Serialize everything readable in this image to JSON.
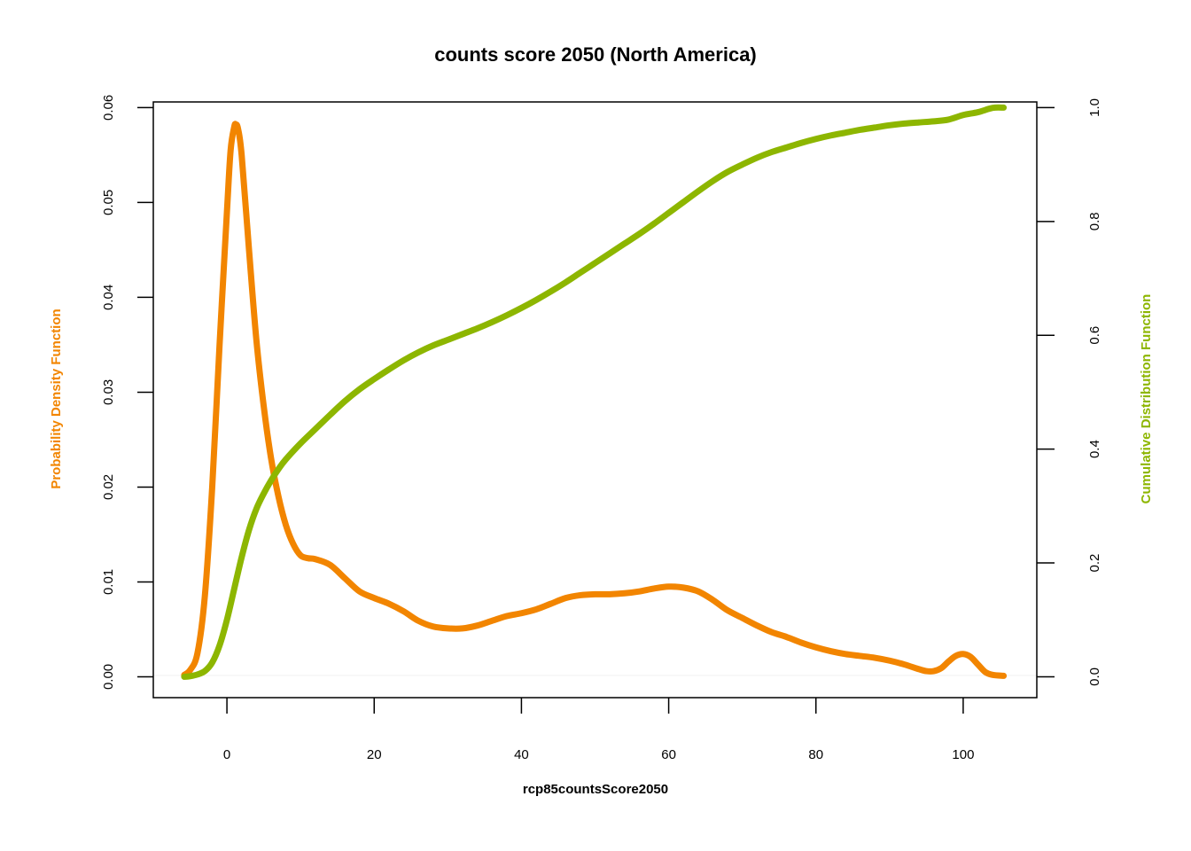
{
  "chart_data": {
    "type": "line",
    "title": "counts score 2050 (North America)",
    "xlabel": "rcp85countsScore2050",
    "ylabel_left": "Probability Density Function",
    "ylabel_right": "Cumulative Distribution Function",
    "xlim": [
      -10,
      110
    ],
    "ylim_left": [
      -0.0022,
      0.0606
    ],
    "ylim_right": [
      -0.0367,
      1.01
    ],
    "x_ticks": [
      0,
      20,
      40,
      60,
      80,
      100
    ],
    "x_tick_labels": [
      "0",
      "20",
      "40",
      "60",
      "80",
      "100"
    ],
    "y_left_ticks": [
      0,
      0.01,
      0.02,
      0.03,
      0.04,
      0.05,
      0.06
    ],
    "y_left_tick_labels": [
      "0.00",
      "0.01",
      "0.02",
      "0.03",
      "0.04",
      "0.05",
      "0.06"
    ],
    "y_right_ticks": [
      0,
      0.2,
      0.4,
      0.6,
      0.8,
      1.0
    ],
    "y_right_tick_labels": [
      "0.0",
      "0.2",
      "0.4",
      "0.6",
      "0.8",
      "1.0"
    ],
    "grid": false,
    "colors": {
      "pdf": "#F28500",
      "cdf": "#8DB600"
    },
    "series": [
      {
        "axis": "left",
        "x": [
          -5.8,
          -5,
          -4,
          -3,
          -2,
          -1,
          0,
          0.5,
          1,
          1.2,
          1.5,
          2,
          3,
          4,
          5,
          6,
          7,
          8,
          9,
          10,
          11,
          12,
          14,
          16,
          18,
          20,
          22,
          24,
          26,
          28,
          30,
          32,
          34,
          36,
          38,
          40,
          42,
          44,
          46,
          48,
          50,
          52,
          54,
          56,
          58,
          60,
          62,
          64,
          66,
          68,
          70,
          72,
          74,
          76,
          78,
          80,
          82,
          84,
          86,
          88,
          90,
          92,
          94,
          95,
          96,
          97,
          98,
          99,
          100,
          101,
          102,
          103,
          104,
          105.5
        ],
        "y": [
          0.0002,
          0.0007,
          0.0025,
          0.0085,
          0.02,
          0.035,
          0.049,
          0.0555,
          0.058,
          0.0582,
          0.0578,
          0.055,
          0.045,
          0.0355,
          0.0285,
          0.023,
          0.019,
          0.016,
          0.014,
          0.0128,
          0.0125,
          0.0124,
          0.0118,
          0.0104,
          0.009,
          0.0083,
          0.0077,
          0.0069,
          0.0059,
          0.0053,
          0.0051,
          0.0051,
          0.0054,
          0.0059,
          0.0064,
          0.0067,
          0.0071,
          0.0077,
          0.0083,
          0.0086,
          0.0087,
          0.0087,
          0.0088,
          0.009,
          0.0093,
          0.0095,
          0.0094,
          0.009,
          0.0081,
          0.007,
          0.0062,
          0.0054,
          0.0047,
          0.0042,
          0.0036,
          0.0031,
          0.0027,
          0.0024,
          0.0022,
          0.002,
          0.0017,
          0.0013,
          0.0008,
          0.0006,
          0.0006,
          0.0009,
          0.0016,
          0.0022,
          0.0024,
          0.0021,
          0.0013,
          0.0005,
          0.0002,
          0.0001
        ]
      },
      {
        "axis": "right",
        "x": [
          -5.8,
          -5,
          -4,
          -3,
          -2,
          -1,
          0,
          1,
          2,
          3,
          4,
          5,
          6,
          7,
          8,
          10,
          12,
          14,
          16,
          18,
          20,
          22,
          24,
          26,
          28,
          30,
          32,
          34,
          36,
          38,
          40,
          42,
          44,
          46,
          48,
          50,
          52,
          54,
          56,
          58,
          60,
          62,
          64,
          66,
          68,
          70,
          72,
          74,
          76,
          78,
          80,
          82,
          84,
          86,
          88,
          90,
          92,
          94,
          96,
          98,
          100,
          102,
          104,
          105.5
        ],
        "y": [
          0,
          0.001,
          0.004,
          0.01,
          0.025,
          0.055,
          0.1,
          0.155,
          0.21,
          0.258,
          0.295,
          0.322,
          0.345,
          0.365,
          0.382,
          0.41,
          0.435,
          0.46,
          0.484,
          0.505,
          0.523,
          0.54,
          0.556,
          0.57,
          0.582,
          0.592,
          0.602,
          0.612,
          0.623,
          0.635,
          0.648,
          0.662,
          0.677,
          0.693,
          0.71,
          0.727,
          0.744,
          0.761,
          0.778,
          0.796,
          0.815,
          0.834,
          0.853,
          0.871,
          0.887,
          0.9,
          0.912,
          0.922,
          0.93,
          0.938,
          0.945,
          0.951,
          0.956,
          0.961,
          0.965,
          0.969,
          0.972,
          0.974,
          0.976,
          0.979,
          0.987,
          0.992,
          0.9995,
          1.0
        ]
      }
    ]
  }
}
